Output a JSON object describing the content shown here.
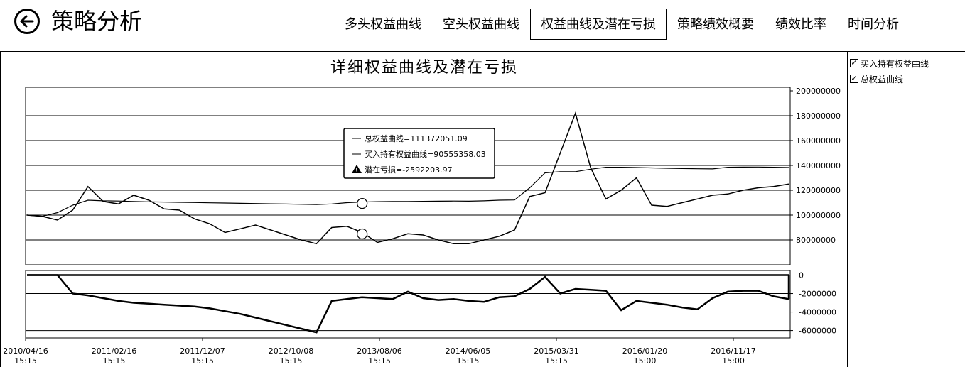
{
  "header": {
    "title": "策略分析",
    "tabs": [
      {
        "label": "多头权益曲线",
        "active": false
      },
      {
        "label": "空头权益曲线",
        "active": false
      },
      {
        "label": "权益曲线及潜在亏损",
        "active": true
      },
      {
        "label": "策略绩效概要",
        "active": false
      },
      {
        "label": "绩效比率",
        "active": false
      },
      {
        "label": "时间分析",
        "active": false
      }
    ]
  },
  "legend_toggles": [
    {
      "label": "买入持有权益曲线",
      "checked": true
    },
    {
      "label": "总权益曲线",
      "checked": true
    }
  ],
  "tooltip": {
    "total_equity": "总权益曲线=111372051.09",
    "buy_hold_equity": "买入持有权益曲线=90555358.03",
    "drawdown": "潜在亏损=-2592203.97"
  },
  "icons": {
    "back": "arrow-left-icon",
    "warning": "warning-icon"
  },
  "chart_data": [
    {
      "type": "line",
      "title": "详细权益曲线及潜在亏损",
      "y_tick_labels": [
        "200000000",
        "180000000",
        "160000000",
        "140000000",
        "120000000",
        "100000000",
        "80000000"
      ],
      "ylim": [
        60000000,
        200000000
      ],
      "x_tick_labels": [
        {
          "date": "2010/04/16",
          "time": "15:15"
        },
        {
          "date": "2011/02/16",
          "time": "15:15"
        },
        {
          "date": "2011/12/07",
          "time": "15:15"
        },
        {
          "date": "2012/10/08",
          "time": "15:15"
        },
        {
          "date": "2013/08/06",
          "time": "15:15"
        },
        {
          "date": "2014/06/05",
          "time": "15:15"
        },
        {
          "date": "2015/03/31",
          "time": "15:15"
        },
        {
          "date": "2016/01/20",
          "time": "15:00"
        },
        {
          "date": "2016/11/17",
          "time": "15:00"
        }
      ],
      "x": [
        0,
        2,
        4,
        6,
        8,
        10,
        12,
        14,
        16,
        18,
        20,
        22,
        24,
        26,
        28,
        30,
        32,
        34,
        36,
        38,
        40,
        42,
        44,
        46,
        48,
        50,
        52,
        54,
        56,
        58,
        60,
        62,
        64,
        66,
        68,
        70,
        72,
        74,
        76,
        78,
        80,
        82,
        84,
        86,
        88,
        90,
        92,
        94,
        96,
        98,
        100
      ],
      "series": [
        {
          "values": [
            100,
            99,
            102,
            108,
            112,
            111.5,
            111.3,
            111,
            110.7,
            110.5,
            110.3,
            110.1,
            109.9,
            109.7,
            109.5,
            109.3,
            109.1,
            108.9,
            108.7,
            108.5,
            109,
            110,
            110.5,
            110.8,
            111,
            111,
            111.1,
            111.2,
            111.3,
            111.2,
            111.5,
            112,
            112.2,
            122,
            134,
            135,
            135,
            137,
            138.5,
            138.5,
            138.3,
            138,
            137.7,
            137.5,
            137.3,
            137.2,
            138.5,
            138.6,
            138.7,
            138.5,
            138.3
          ]
        },
        {
          "values": [
            100,
            99,
            96,
            104,
            123,
            111,
            109,
            116,
            112,
            105,
            104,
            97,
            93,
            86,
            89,
            92,
            88,
            84,
            80,
            77,
            90,
            91,
            86,
            78,
            81,
            85,
            84,
            80,
            77,
            77,
            80,
            83,
            88,
            115,
            118,
            150,
            182,
            138,
            113,
            120,
            130,
            108,
            107,
            110,
            113,
            116,
            117,
            120,
            122,
            123,
            125
          ]
        }
      ]
    },
    {
      "type": "area",
      "y_tick_labels": [
        "0",
        "-2000000",
        "-4000000",
        "-6000000"
      ],
      "ylim": [
        -6800000,
        500000
      ],
      "x": [
        0,
        2,
        4,
        6,
        8,
        10,
        12,
        14,
        16,
        18,
        20,
        22,
        24,
        26,
        28,
        30,
        32,
        34,
        36,
        38,
        40,
        42,
        44,
        46,
        48,
        50,
        52,
        54,
        56,
        58,
        60,
        62,
        64,
        66,
        68,
        70,
        72,
        74,
        76,
        78,
        80,
        82,
        84,
        86,
        88,
        90,
        92,
        94,
        96,
        98,
        100
      ],
      "values": [
        0,
        0,
        0,
        -2000000,
        -2200000,
        -2500000,
        -2800000,
        -3000000,
        -3100000,
        -3200000,
        -3300000,
        -3400000,
        -3600000,
        -3900000,
        -4200000,
        -4600000,
        -5000000,
        -5400000,
        -5800000,
        -6200000,
        -2800000,
        -2600000,
        -2400000,
        -2500000,
        -2600000,
        -1800000,
        -2500000,
        -2700000,
        -2600000,
        -2800000,
        -2900000,
        -2400000,
        -2300000,
        -1500000,
        -200000,
        -2000000,
        -1500000,
        -1600000,
        -1700000,
        -3800000,
        -2800000,
        -3000000,
        -3200000,
        -3500000,
        -3700000,
        -2500000,
        -1800000,
        -1700000,
        -1700000,
        -2300000,
        -2600000
      ]
    }
  ]
}
